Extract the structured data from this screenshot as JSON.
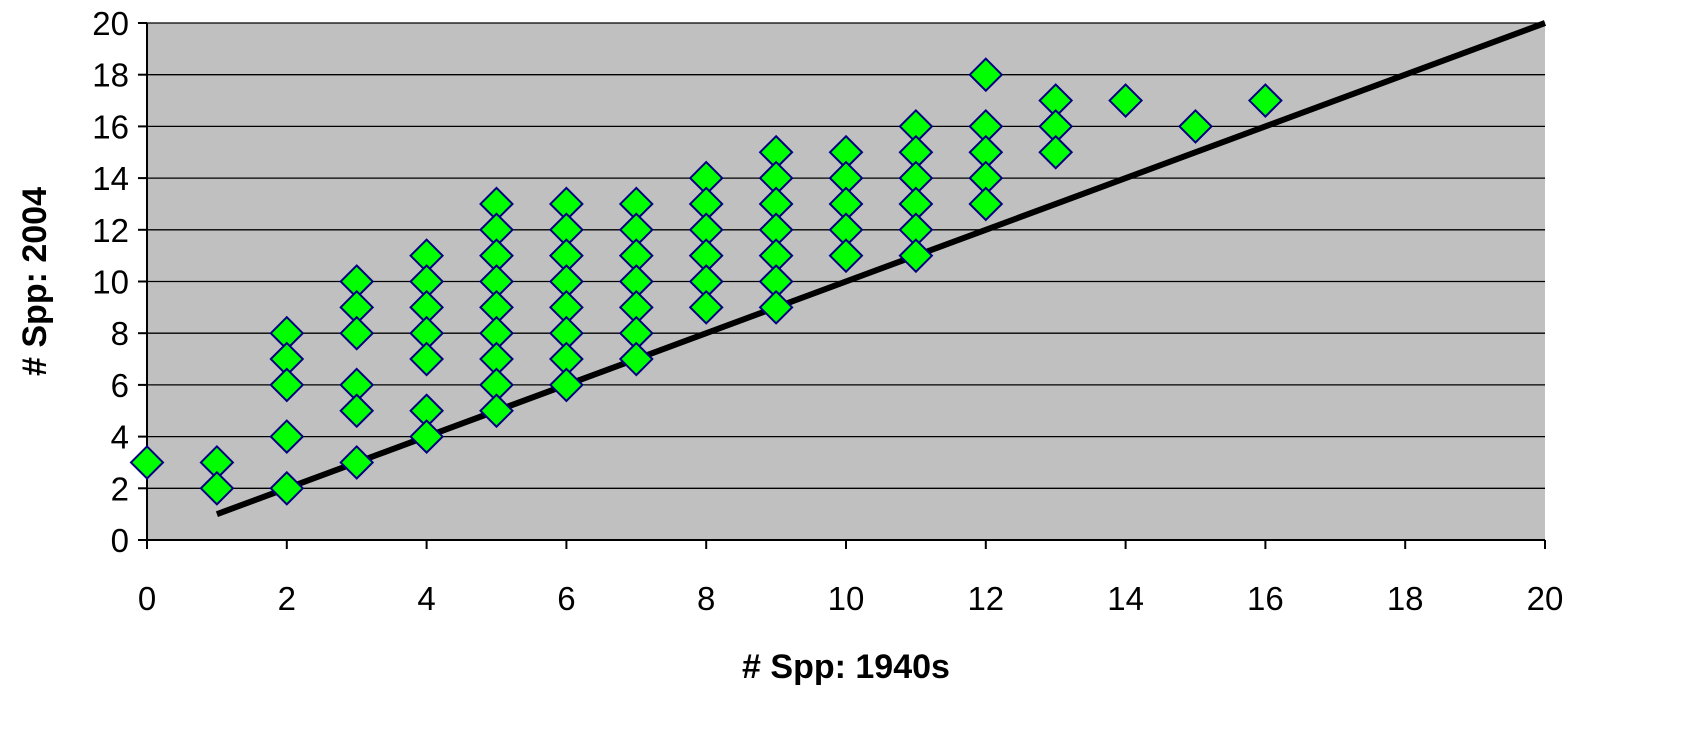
{
  "chart_data": {
    "type": "scatter",
    "title": "",
    "xlabel": "# Spp: 1940s",
    "ylabel": "# Spp: 2004",
    "xlim": [
      0,
      20
    ],
    "ylim": [
      0,
      20
    ],
    "x_ticks": [
      "0",
      "2",
      "4",
      "6",
      "8",
      "10",
      "12",
      "14",
      "16",
      "18",
      "20"
    ],
    "y_ticks": [
      "0",
      "2",
      "4",
      "6",
      "8",
      "10",
      "12",
      "14",
      "16",
      "18",
      "20"
    ],
    "grid": "horizontal",
    "legend": "none",
    "plot_background": "#c0c0c0",
    "gridline_color": "#000000",
    "marker": {
      "shape": "diamond",
      "fill": "#00ff00",
      "stroke": "#000080"
    },
    "series": [
      {
        "points": [
          [
            0,
            3
          ],
          [
            1,
            3
          ],
          [
            1,
            2
          ],
          [
            2,
            8
          ],
          [
            2,
            7
          ],
          [
            2,
            6
          ],
          [
            2,
            4
          ],
          [
            2,
            2
          ],
          [
            3,
            10
          ],
          [
            3,
            9
          ],
          [
            3,
            8
          ],
          [
            3,
            6
          ],
          [
            3,
            5
          ],
          [
            3,
            3
          ],
          [
            4,
            11
          ],
          [
            4,
            10
          ],
          [
            4,
            9
          ],
          [
            4,
            8
          ],
          [
            4,
            7
          ],
          [
            4,
            5
          ],
          [
            4,
            4
          ],
          [
            5,
            13
          ],
          [
            5,
            12
          ],
          [
            5,
            11
          ],
          [
            5,
            10
          ],
          [
            5,
            9
          ],
          [
            5,
            8
          ],
          [
            5,
            7
          ],
          [
            5,
            6
          ],
          [
            5,
            5
          ],
          [
            6,
            13
          ],
          [
            6,
            12
          ],
          [
            6,
            11
          ],
          [
            6,
            10
          ],
          [
            6,
            9
          ],
          [
            6,
            8
          ],
          [
            6,
            7
          ],
          [
            6,
            6
          ],
          [
            7,
            13
          ],
          [
            7,
            12
          ],
          [
            7,
            11
          ],
          [
            7,
            10
          ],
          [
            7,
            9
          ],
          [
            7,
            8
          ],
          [
            7,
            7
          ],
          [
            8,
            14
          ],
          [
            8,
            13
          ],
          [
            8,
            12
          ],
          [
            8,
            11
          ],
          [
            8,
            10
          ],
          [
            8,
            9
          ],
          [
            9,
            15
          ],
          [
            9,
            14
          ],
          [
            9,
            13
          ],
          [
            9,
            12
          ],
          [
            9,
            11
          ],
          [
            9,
            10
          ],
          [
            9,
            9
          ],
          [
            10,
            15
          ],
          [
            10,
            14
          ],
          [
            10,
            13
          ],
          [
            10,
            12
          ],
          [
            10,
            11
          ],
          [
            11,
            16
          ],
          [
            11,
            15
          ],
          [
            11,
            14
          ],
          [
            11,
            13
          ],
          [
            11,
            12
          ],
          [
            11,
            11
          ],
          [
            12,
            18
          ],
          [
            12,
            16
          ],
          [
            12,
            15
          ],
          [
            12,
            14
          ],
          [
            12,
            13
          ],
          [
            13,
            17
          ],
          [
            13,
            16
          ],
          [
            13,
            15
          ],
          [
            14,
            17
          ],
          [
            15,
            16
          ],
          [
            16,
            17
          ]
        ]
      }
    ],
    "reference_line": {
      "from": [
        1,
        1
      ],
      "to": [
        20,
        20
      ],
      "color": "#000000"
    }
  }
}
